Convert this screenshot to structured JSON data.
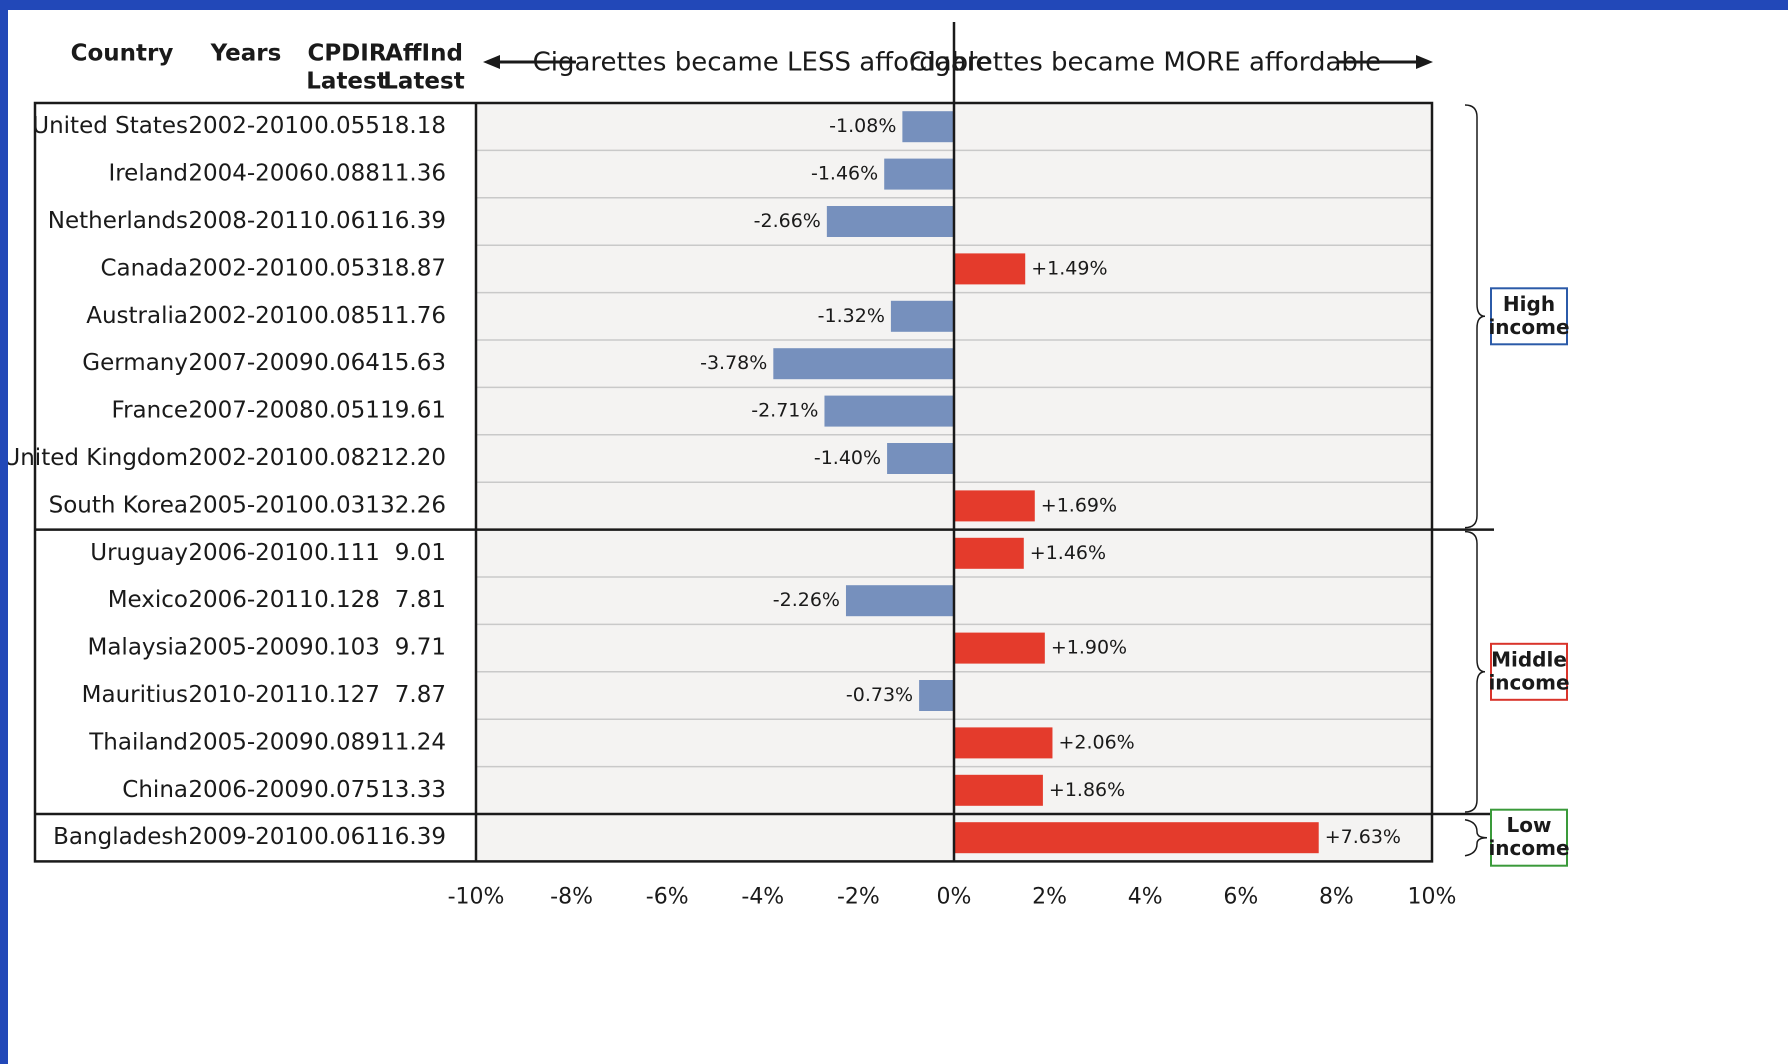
{
  "headers": {
    "country": "Country",
    "years": "Years",
    "cpdir": [
      "CPDIR",
      "Latest"
    ],
    "affind": [
      "AffInd",
      "Latest"
    ]
  },
  "banners": {
    "less": "Cigarettes became LESS affordable",
    "more": "Cigarettes became MORE affordable"
  },
  "colors": {
    "less_affordable": "#7690bd",
    "more_affordable": "#e43b2c",
    "high_income": "#2b5aa8",
    "middle_income": "#d9342b",
    "low_income": "#3a9a3a",
    "plot_bg": "#f4f3f2"
  },
  "income_groups": [
    {
      "name": "High income",
      "lines": [
        "High",
        "income"
      ],
      "color_key": "high_income"
    },
    {
      "name": "Middle income",
      "lines": [
        "Middle",
        "income"
      ],
      "color_key": "middle_income"
    },
    {
      "name": "Low income",
      "lines": [
        "Low",
        "income"
      ],
      "color_key": "low_income"
    }
  ],
  "chart_data": {
    "type": "bar",
    "orientation": "horizontal",
    "xlim": [
      -10,
      10
    ],
    "x_ticks": [
      "-10%",
      "-8%",
      "-6%",
      "-4%",
      "-2%",
      "0%",
      "2%",
      "4%",
      "6%",
      "8%",
      "10%"
    ],
    "x_tick_values": [
      -10,
      -8,
      -6,
      -4,
      -2,
      0,
      2,
      4,
      6,
      8,
      10
    ],
    "grid": true,
    "rows": [
      {
        "country": "United States",
        "years": "2002-2010",
        "cpdir": "0.055",
        "affind": "18.18",
        "value": -1.08,
        "label": "-1.08%",
        "group": "High income"
      },
      {
        "country": "Ireland",
        "years": "2004-2006",
        "cpdir": "0.088",
        "affind": "11.36",
        "value": -1.46,
        "label": "-1.46%",
        "group": "High income"
      },
      {
        "country": "Netherlands",
        "years": "2008-2011",
        "cpdir": "0.061",
        "affind": "16.39",
        "value": -2.66,
        "label": "-2.66%",
        "group": "High income"
      },
      {
        "country": "Canada",
        "years": "2002-2010",
        "cpdir": "0.053",
        "affind": "18.87",
        "value": 1.49,
        "label": "+1.49%",
        "group": "High income"
      },
      {
        "country": "Australia",
        "years": "2002-2010",
        "cpdir": "0.085",
        "affind": "11.76",
        "value": -1.32,
        "label": "-1.32%",
        "group": "High income"
      },
      {
        "country": "Germany",
        "years": "2007-2009",
        "cpdir": "0.064",
        "affind": "15.63",
        "value": -3.78,
        "label": "-3.78%",
        "group": "High income"
      },
      {
        "country": "France",
        "years": "2007-2008",
        "cpdir": "0.051",
        "affind": "19.61",
        "value": -2.71,
        "label": "-2.71%",
        "group": "High income"
      },
      {
        "country": "United Kingdom",
        "years": "2002-2010",
        "cpdir": "0.082",
        "affind": "12.20",
        "value": -1.4,
        "label": "-1.40%",
        "group": "High income"
      },
      {
        "country": "South Korea",
        "years": "2005-2010",
        "cpdir": "0.031",
        "affind": "32.26",
        "value": 1.69,
        "label": "+1.69%",
        "group": "High income"
      },
      {
        "country": "Uruguay",
        "years": "2006-2010",
        "cpdir": "0.111",
        "affind": "9.01",
        "value": 1.46,
        "label": "+1.46%",
        "group": "Middle income"
      },
      {
        "country": "Mexico",
        "years": "2006-2011",
        "cpdir": "0.128",
        "affind": "7.81",
        "value": -2.26,
        "label": "-2.26%",
        "group": "Middle income"
      },
      {
        "country": "Malaysia",
        "years": "2005-2009",
        "cpdir": "0.103",
        "affind": "9.71",
        "value": 1.9,
        "label": "+1.90%",
        "group": "Middle income"
      },
      {
        "country": "Mauritius",
        "years": "2010-2011",
        "cpdir": "0.127",
        "affind": "7.87",
        "value": -0.73,
        "label": "-0.73%",
        "group": "Middle income"
      },
      {
        "country": "Thailand",
        "years": "2005-2009",
        "cpdir": "0.089",
        "affind": "11.24",
        "value": 2.06,
        "label": "+2.06%",
        "group": "Middle income"
      },
      {
        "country": "China",
        "years": "2006-2009",
        "cpdir": "0.075",
        "affind": "13.33",
        "value": 1.86,
        "label": "+1.86%",
        "group": "Middle income"
      },
      {
        "country": "Bangladesh",
        "years": "2009-2010",
        "cpdir": "0.061",
        "affind": "16.39",
        "value": 7.63,
        "label": "+7.63%",
        "group": "Low income"
      }
    ]
  }
}
